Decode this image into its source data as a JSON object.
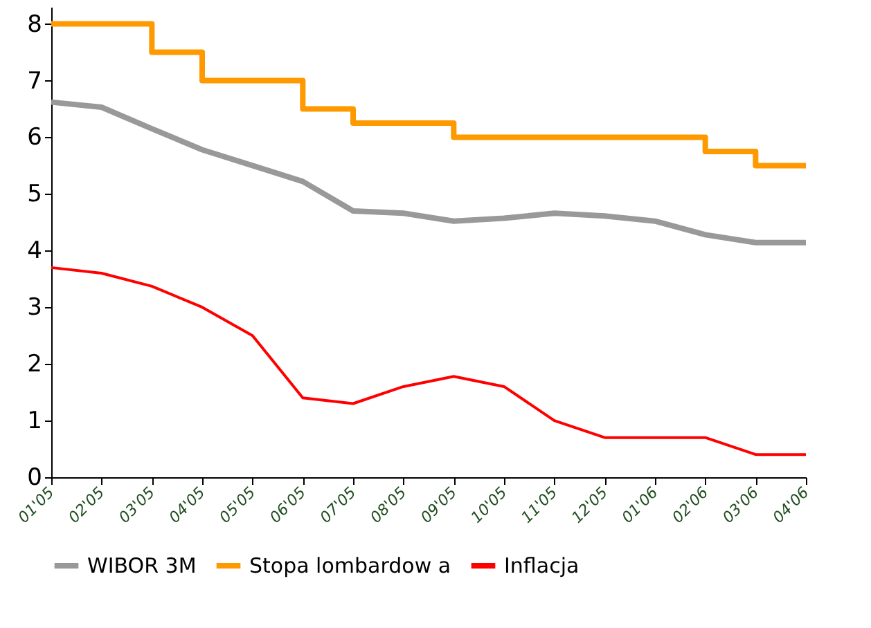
{
  "chart_data": {
    "type": "line",
    "categories": [
      "01'05",
      "02'05",
      "03'05",
      "04'05",
      "05'05",
      "06'05",
      "07'05",
      "08'05",
      "09'05",
      "10'05",
      "11'05",
      "12'05",
      "01'06",
      "02'06",
      "03'06",
      "04'06"
    ],
    "ylim": [
      0,
      8.3
    ],
    "yticks": [
      0,
      1,
      2,
      3,
      4,
      5,
      6,
      7,
      8
    ],
    "grid": false,
    "legend": "bottom",
    "marker": "none",
    "line_style": "solid",
    "series": [
      {
        "name": "WIBOR 3M",
        "color": "#999999",
        "values": [
          6.62,
          6.53,
          6.15,
          5.78,
          5.5,
          5.22,
          4.7,
          4.66,
          4.52,
          4.57,
          4.66,
          4.61,
          4.52,
          4.28,
          4.14,
          4.14
        ]
      },
      {
        "name": "Stopa lombardow a",
        "color": "#ff9900",
        "type": "step",
        "values": [
          8,
          8,
          7.5,
          7,
          7,
          6.5,
          6.25,
          6.25,
          6,
          6,
          6,
          6,
          6,
          5.75,
          5.5,
          5.5
        ]
      },
      {
        "name": "Inflacja",
        "color": "#ff0000",
        "values": [
          3.7,
          3.6,
          3.37,
          3.0,
          2.5,
          1.4,
          1.3,
          1.6,
          1.78,
          1.6,
          1.0,
          0.7,
          0.7,
          0.7,
          0.4,
          0.4
        ]
      }
    ]
  }
}
